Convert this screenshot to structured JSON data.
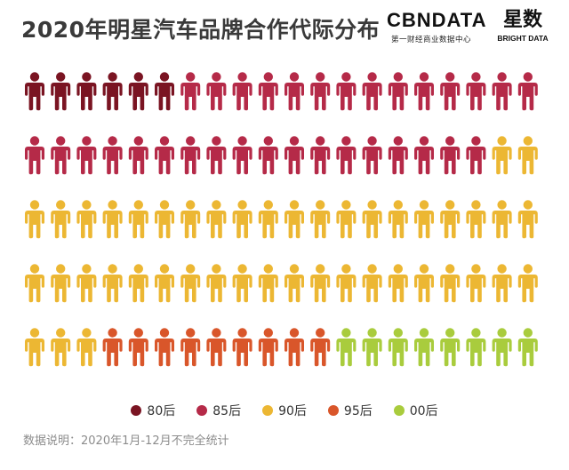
{
  "title": "2020年明星汽车品牌合作代际分布",
  "brands": {
    "cbn_logo": "CBNDATA",
    "cbn_sub": "第一财经商业数据中心",
    "xingshu_logo": "星数",
    "xingshu_sub": "BRIGHT DATA"
  },
  "note": "数据说明：2020年1月-12月不完全统计",
  "chart_data": {
    "type": "pictogram",
    "title": "2020年明星汽车品牌合作代际分布",
    "icon": "person-icon",
    "rows": 5,
    "columns": 20,
    "series": [
      {
        "name": "80后",
        "count": 6,
        "color": "#7a1422"
      },
      {
        "name": "85后",
        "count": 32,
        "color": "#b52a48"
      },
      {
        "name": "90后",
        "count": 45,
        "color": "#ecb733"
      },
      {
        "name": "95后",
        "count": 9,
        "color": "#d9562a"
      },
      {
        "name": "00后",
        "count": 8,
        "color": "#a9cc3d"
      }
    ],
    "legend_position": "bottom-center"
  }
}
